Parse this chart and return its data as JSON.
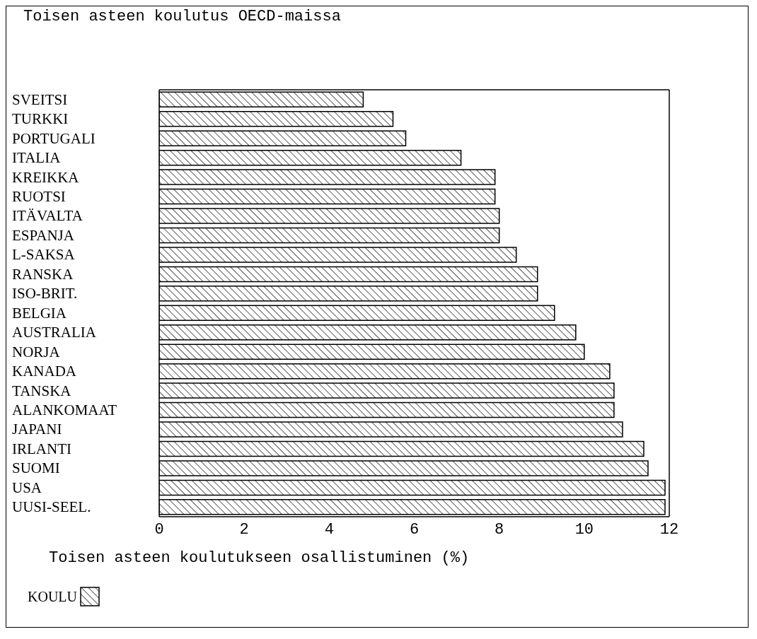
{
  "chart_data": {
    "type": "bar",
    "orientation": "horizontal",
    "title": "Toisen asteen koulutus OECD-maissa",
    "xlabel": "Toisen asteen koulutukseen osallistuminen (%)",
    "categories": [
      "SVEITSI",
      "TURKKI",
      "PORTUGALI",
      "ITALIA",
      "KREIKKA",
      "RUOTSI",
      "ITÄVALTA",
      "ESPANJA",
      "L-SAKSA",
      "RANSKA",
      "ISO-BRIT.",
      "BELGIA",
      "AUSTRALIA",
      "NORJA",
      "KANADA",
      "TANSKA",
      "ALANKOMAAT",
      "JAPANI",
      "IRLANTI",
      "SUOMI",
      "USA",
      "UUSI-SEEL."
    ],
    "series": [
      {
        "name": "KOULU",
        "color": "#000000",
        "values": [
          4.8,
          5.5,
          5.8,
          7.1,
          7.9,
          7.9,
          8.0,
          8.0,
          8.4,
          8.9,
          8.9,
          9.3,
          9.8,
          10.0,
          10.6,
          10.7,
          10.7,
          10.9,
          11.4,
          11.5,
          11.9,
          11.9
        ]
      }
    ],
    "xlim": [
      0,
      12
    ],
    "xticks": [
      0,
      2,
      4,
      6,
      8,
      10,
      12
    ],
    "legend": "bottom left"
  }
}
